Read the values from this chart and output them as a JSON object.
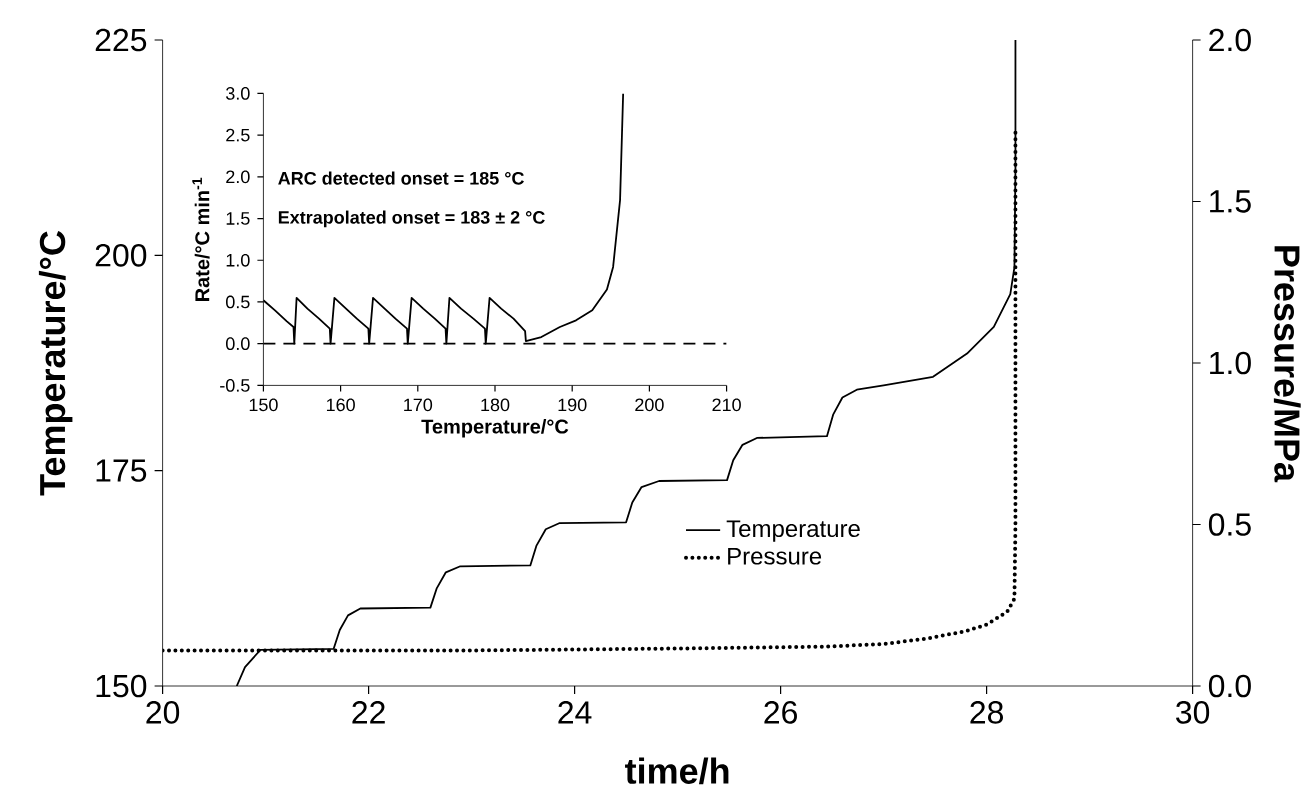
{
  "chart_data": [
    {
      "type": "line",
      "xlabel": "time/h",
      "ylabel": "Temperature/°C",
      "y2label": "Pressure/MPa",
      "xlim": [
        20,
        30
      ],
      "xticks": [
        20,
        22,
        24,
        26,
        28,
        30
      ],
      "ylim": [
        150,
        225
      ],
      "yticks": [
        150,
        175,
        200,
        225
      ],
      "y2lim": [
        0,
        2
      ],
      "y2ticks": [
        {
          "value": 0,
          "label": "0.0"
        },
        {
          "value": 0.5,
          "label": "0.5"
        },
        {
          "value": 1,
          "label": "1.0"
        },
        {
          "value": 1.5,
          "label": "1.5"
        },
        {
          "value": 2,
          "label": "2.0"
        }
      ],
      "legend": "right",
      "marker": "none",
      "series": [
        {
          "name": "Temperature",
          "color": "#000000",
          "line_style": "solid",
          "x": [
            20.72,
            20.8,
            20.95,
            21.66,
            21.72,
            21.8,
            21.92,
            22.6,
            22.66,
            22.75,
            22.89,
            23.57,
            23.63,
            23.72,
            23.85,
            24.5,
            24.56,
            24.65,
            24.82,
            25.48,
            25.54,
            25.63,
            25.77,
            26.45,
            26.51,
            26.6,
            26.74,
            27.0,
            27.48,
            27.81,
            28.07,
            28.23,
            28.27,
            28.28,
            28.28
          ],
          "values": [
            150,
            152.2,
            154.2,
            154.3,
            156.5,
            158.2,
            159,
            159.1,
            161.3,
            163.2,
            163.9,
            164,
            166.3,
            168.2,
            168.9,
            169,
            171.3,
            173.1,
            173.8,
            173.9,
            176.2,
            178,
            178.8,
            179,
            181.5,
            183.5,
            184.4,
            184.9,
            185.9,
            188.6,
            191.7,
            195.5,
            198.6,
            210,
            225
          ]
        },
        {
          "name": "Pressure",
          "color": "#000000",
          "line_style": "dotted",
          "axis": "y2",
          "x": [
            20,
            21,
            22,
            23,
            24,
            25,
            26,
            26.45,
            27,
            27.42,
            27.8,
            28,
            28.2,
            28.27,
            28.28,
            28.28
          ],
          "values": [
            0.11,
            0.11,
            0.11,
            0.11,
            0.113,
            0.116,
            0.12,
            0.122,
            0.13,
            0.147,
            0.17,
            0.19,
            0.23,
            0.27,
            0.5,
            1.72
          ]
        }
      ]
    },
    {
      "type": "line",
      "xlabel": "Temperature/°C",
      "ylabel": "Rate/°C min$^{-1}$",
      "xlim": [
        150,
        210
      ],
      "xticks": [
        150,
        160,
        170,
        180,
        190,
        200,
        210
      ],
      "ylim": [
        -0.5,
        3
      ],
      "yticks": [
        {
          "value": -0.5,
          "label": "-0.5"
        },
        {
          "value": 0,
          "label": "0.0"
        },
        {
          "value": 0.5,
          "label": "0.5"
        },
        {
          "value": 1,
          "label": "1.0"
        },
        {
          "value": 1.5,
          "label": "1.5"
        },
        {
          "value": 2,
          "label": "2.0"
        },
        {
          "value": 2.5,
          "label": "2.5"
        },
        {
          "value": 3,
          "label": "3.0"
        }
      ],
      "marker": "none",
      "ref_lines": [
        {
          "axis": "y",
          "value": 0,
          "line_style": "dashed"
        }
      ],
      "annotations": [
        "ARC detected onset = 185 °C",
        "Extrapolated onset = 183 ± 2 °C"
      ],
      "series": [
        {
          "color": "#000000",
          "line_style": "solid",
          "x": [
            150,
            151.5,
            153,
            153.9,
            154,
            154.3,
            155.7,
            157.2,
            158.6,
            158.7,
            159.2,
            160.7,
            162.1,
            163.6,
            163.7,
            164.2,
            165.7,
            167.1,
            168.6,
            168.7,
            169.2,
            170.7,
            172.2,
            173.6,
            173.7,
            174.1,
            175.6,
            177.2,
            178.7,
            178.8,
            179.3,
            180.8,
            182.4,
            183.9,
            184,
            186,
            188.4,
            190.5,
            192.6,
            194.5,
            195.3,
            196.2,
            196.6
          ],
          "values": [
            0.52,
            0.4,
            0.27,
            0.2,
            0,
            0.55,
            0.42,
            0.3,
            0.18,
            0,
            0.55,
            0.42,
            0.3,
            0.18,
            0,
            0.55,
            0.42,
            0.3,
            0.18,
            0,
            0.55,
            0.42,
            0.3,
            0.18,
            0,
            0.55,
            0.42,
            0.3,
            0.18,
            0,
            0.55,
            0.42,
            0.3,
            0.15,
            0.03,
            0.08,
            0.2,
            0.28,
            0.4,
            0.65,
            0.92,
            1.72,
            3.0
          ]
        }
      ]
    }
  ]
}
